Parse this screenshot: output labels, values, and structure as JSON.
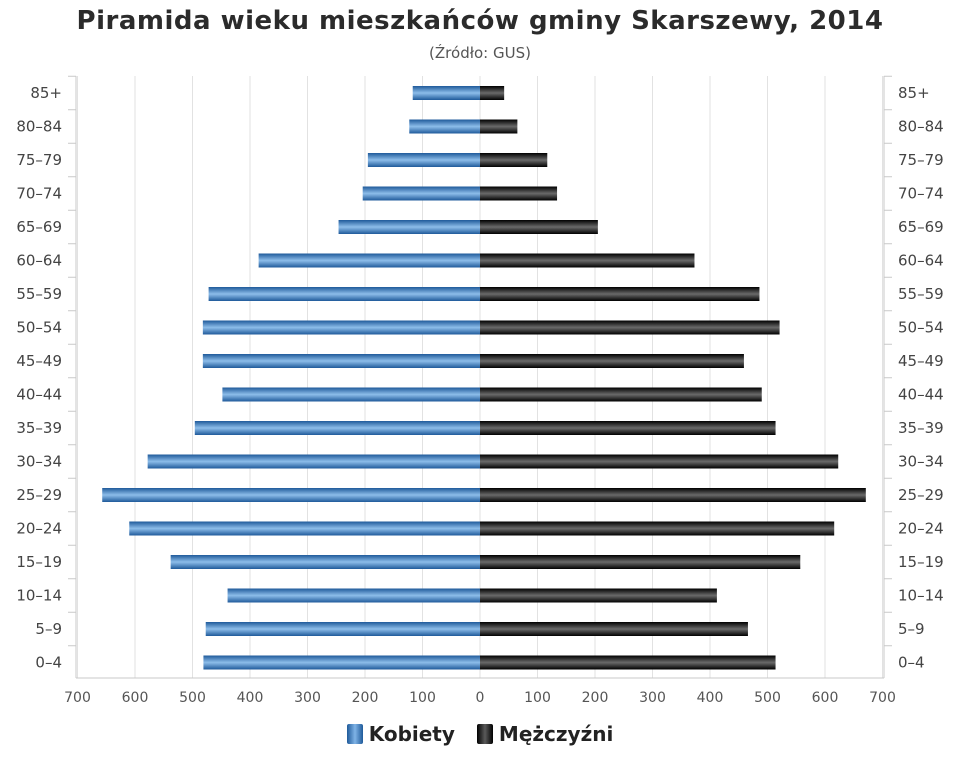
{
  "title": "Piramida wieku mieszkańców gminy Skarszewy, 2014",
  "subtitle": "(Źródło: GUS)",
  "colors": {
    "women": "#3f7fc4",
    "men": "#1a1a1a"
  },
  "legend": {
    "women": "Kobiety",
    "men": "Mężczyźni"
  },
  "chart_data": {
    "type": "bar",
    "orientation": "horizontal",
    "title": "Piramida wieku mieszkańców gminy Skarszewy, 2014",
    "subtitle": "(Źródło: GUS)",
    "categories": [
      "0–4",
      "5–9",
      "10–14",
      "15–19",
      "20–24",
      "25–29",
      "30–34",
      "35–39",
      "40–44",
      "45–49",
      "50–54",
      "55–59",
      "60–64",
      "65–69",
      "70–74",
      "75–79",
      "80–84",
      "85+"
    ],
    "series": [
      {
        "name": "Kobiety",
        "side": "left",
        "values": [
          481,
          477,
          439,
          538,
          610,
          657,
          578,
          496,
          448,
          482,
          482,
          472,
          385,
          246,
          204,
          195,
          123,
          117
        ]
      },
      {
        "name": "Mężczyźni",
        "side": "right",
        "values": [
          514,
          466,
          412,
          557,
          616,
          671,
          623,
          514,
          490,
          459,
          521,
          486,
          373,
          205,
          134,
          117,
          65,
          42
        ]
      }
    ],
    "xlim": [
      -700,
      700
    ],
    "xticks": [
      "700",
      "600",
      "500",
      "400",
      "300",
      "200",
      "100",
      "0",
      "100",
      "200",
      "300",
      "400",
      "500",
      "600",
      "700"
    ],
    "grid": true,
    "legend_position": "bottom"
  }
}
